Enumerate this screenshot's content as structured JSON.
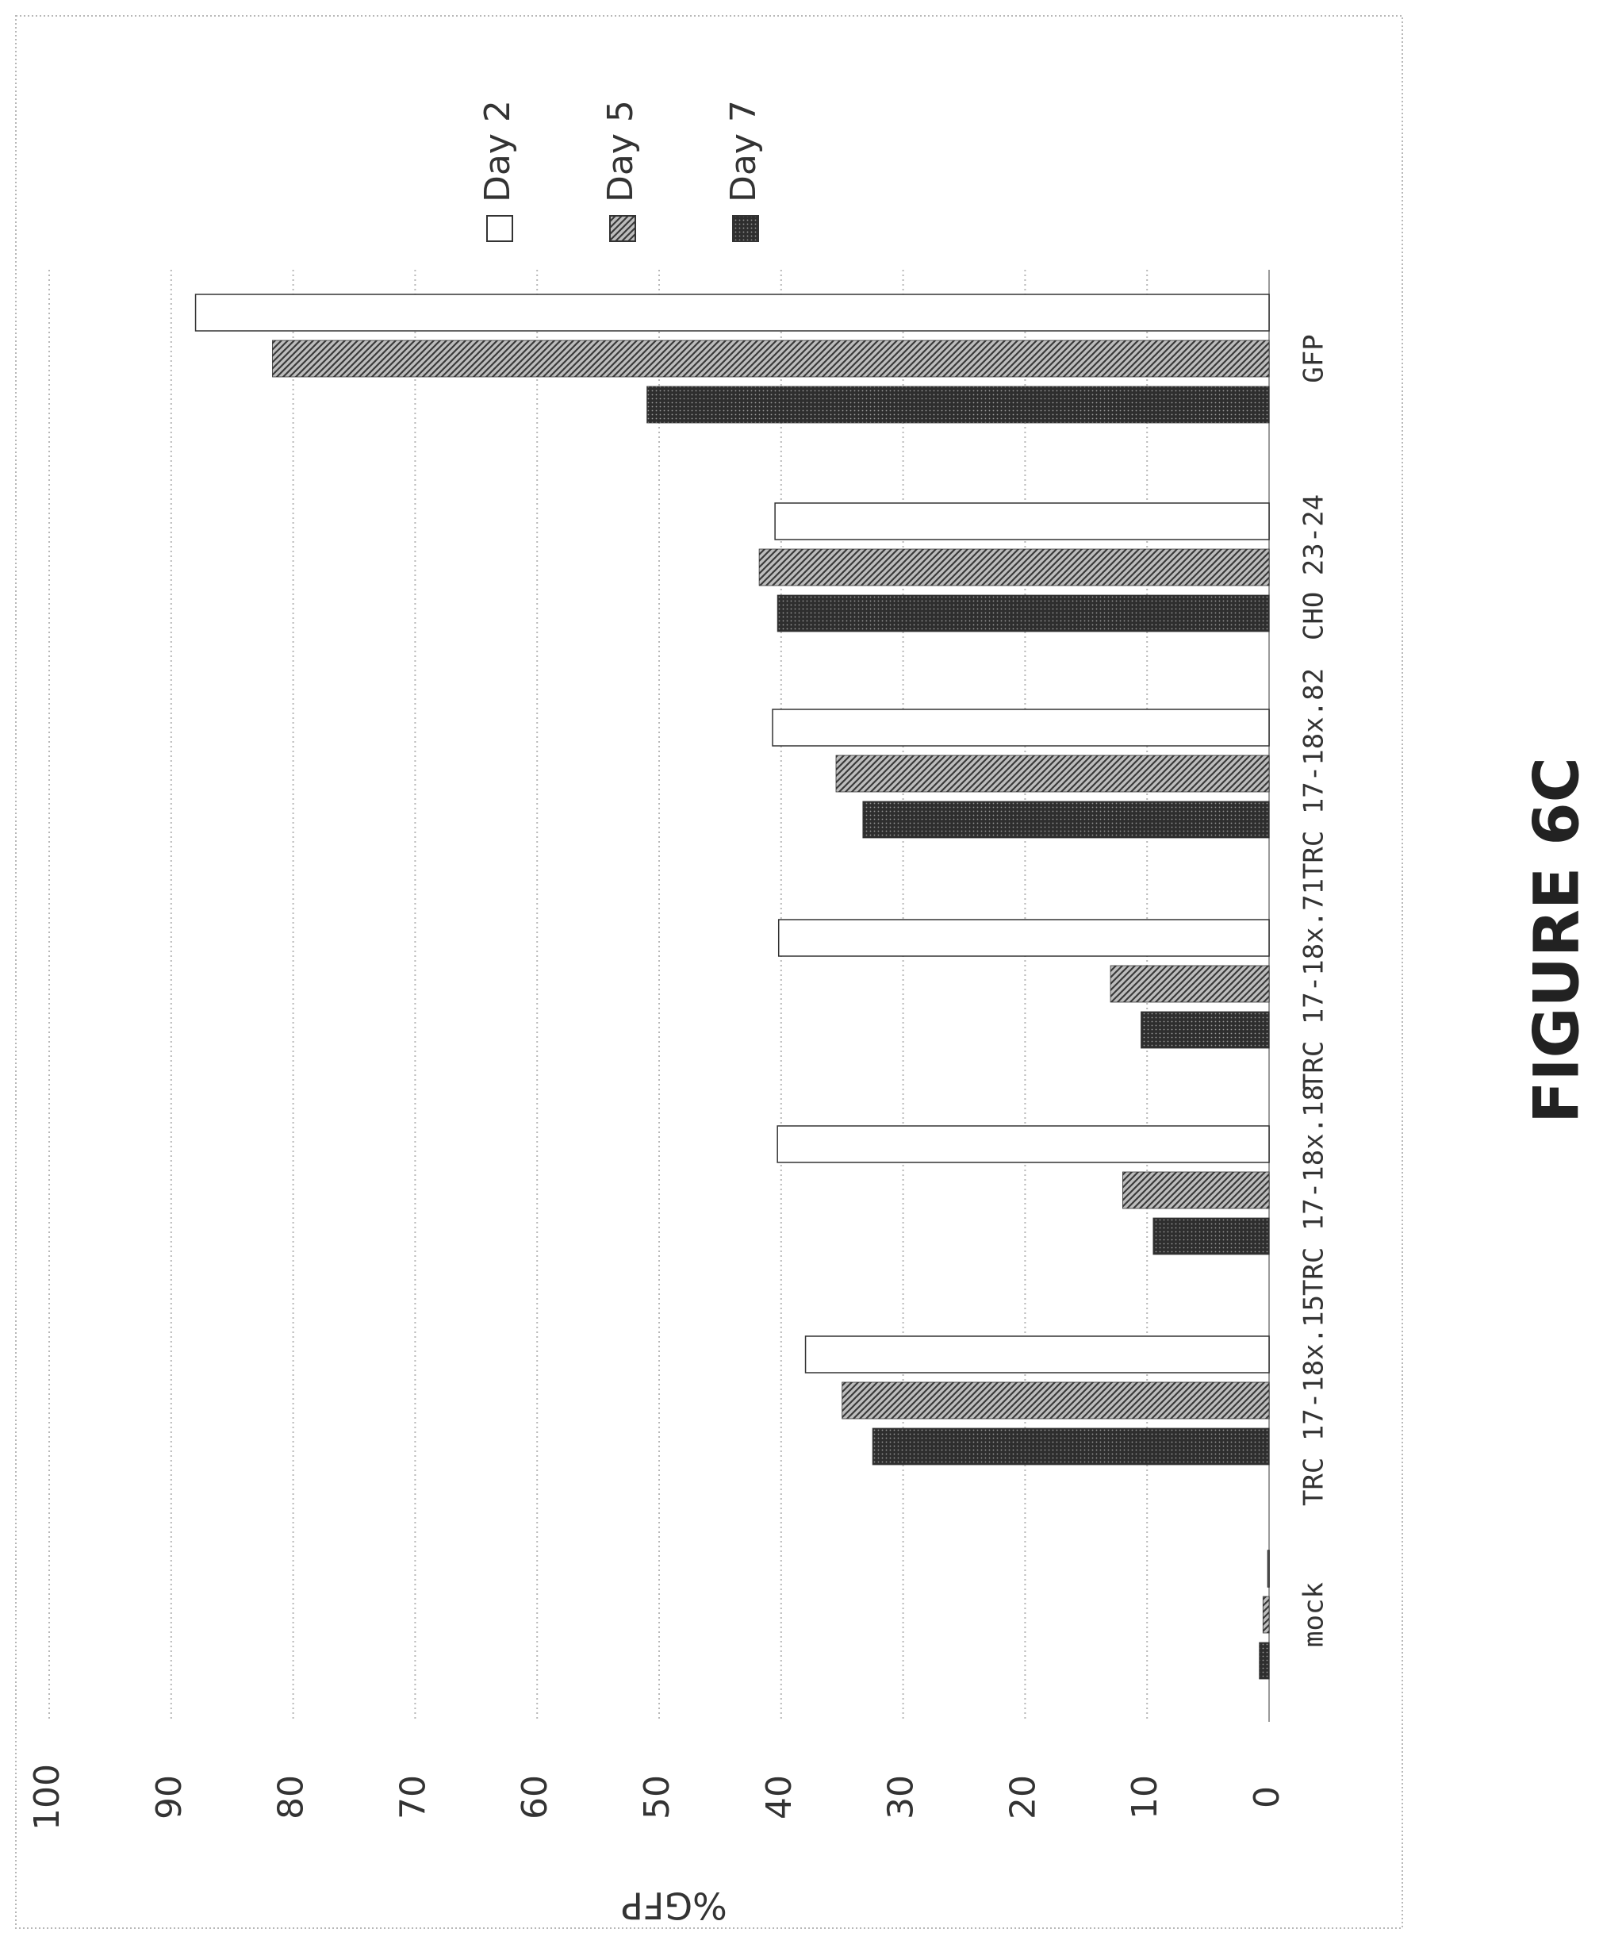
{
  "figure_label": "FIGURE 6C",
  "colors": {
    "day2_fill": "#ffffff",
    "day5_fill": "#8a8a8a",
    "day7_fill": "#3a3a3a",
    "bar_stroke": "#333333",
    "grid": "#b8b8b8",
    "frame": "#b8b8b8"
  },
  "chart_data": {
    "type": "bar",
    "orientation": "rotated-90-ccw",
    "categories": [
      "mock",
      "TRC 17-18x.15",
      "TRC 17-18x.18",
      "TRC 17-18x.71",
      "TRC 17-18x.82",
      "CHO 23-24",
      "GFP"
    ],
    "series": [
      {
        "name": "Day 2",
        "values": [
          0.1,
          38,
          40.3,
          40.2,
          40.7,
          40.5,
          88
        ],
        "fill": "white"
      },
      {
        "name": "Day 5",
        "values": [
          0.5,
          35,
          12,
          13,
          35.5,
          41.8,
          81.7
        ],
        "fill": "hatched"
      },
      {
        "name": "Day 7",
        "values": [
          0.8,
          32.5,
          9.5,
          10.5,
          33.3,
          40.3,
          51
        ],
        "fill": "dark"
      }
    ],
    "y_ticks": [
      "0",
      "10",
      "20",
      "30",
      "40",
      "50",
      "60",
      "70",
      "80",
      "90",
      "100"
    ],
    "ylabel": "%GFP",
    "xlabel": "",
    "title": "",
    "ylim": [
      0,
      100
    ],
    "grid": true,
    "legend": "top-right"
  }
}
